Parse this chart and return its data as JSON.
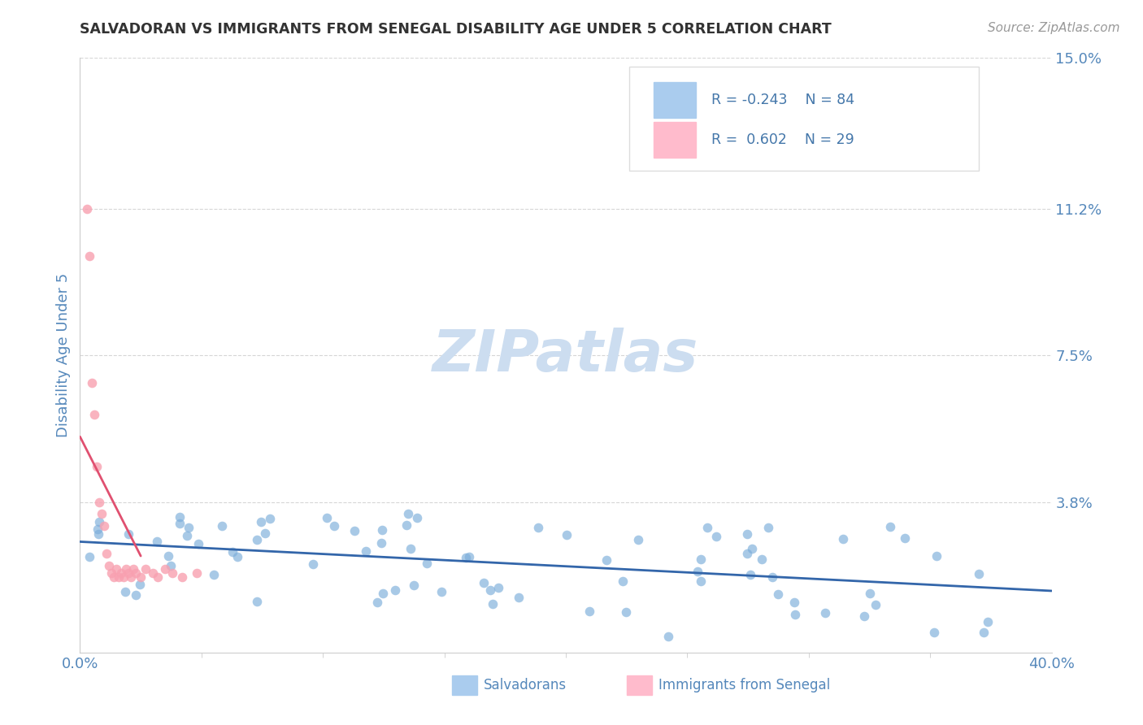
{
  "title": "SALVADORAN VS IMMIGRANTS FROM SENEGAL DISABILITY AGE UNDER 5 CORRELATION CHART",
  "source": "Source: ZipAtlas.com",
  "ylabel": "Disability Age Under 5",
  "xlim": [
    0.0,
    0.4
  ],
  "ylim": [
    0.0,
    0.15
  ],
  "ytick_vals": [
    0.038,
    0.075,
    0.112,
    0.15
  ],
  "ytick_labels": [
    "3.8%",
    "7.5%",
    "11.2%",
    "15.0%"
  ],
  "xtick_vals": [
    0.0,
    0.4
  ],
  "xtick_labels": [
    "0.0%",
    "40.0%"
  ],
  "grid_color": "#cccccc",
  "background_color": "#ffffff",
  "blue_color": "#7aadda",
  "pink_color": "#f8a0b0",
  "legend_text_color": "#4477aa",
  "title_color": "#333333",
  "axis_label_color": "#5588bb",
  "tick_color": "#5588bb",
  "watermark_color": "#ccddf0",
  "source_color": "#999999"
}
